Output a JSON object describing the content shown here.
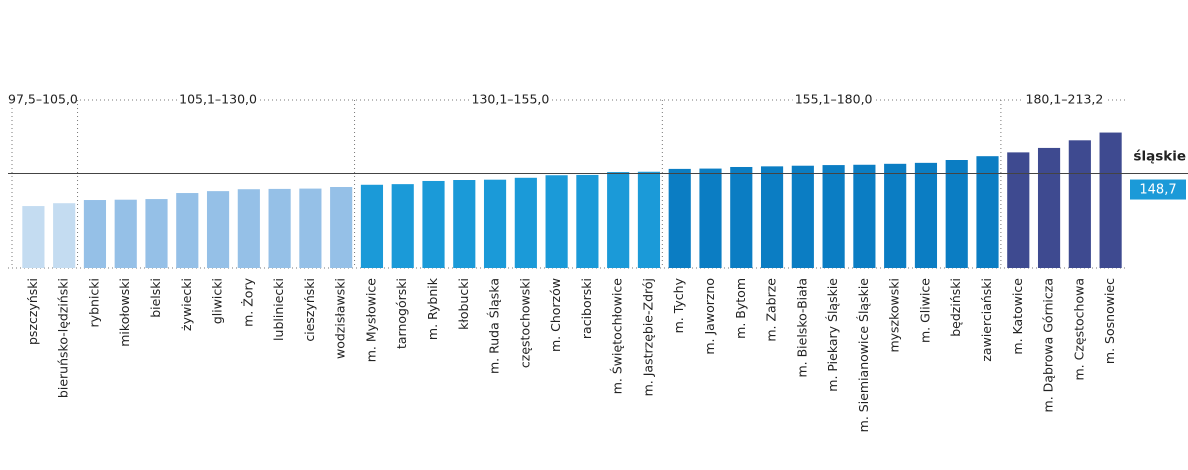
{
  "chart_data": {
    "type": "bar",
    "categories": [
      "pszczyński",
      "bieruńsko-lędziński",
      "rybnicki",
      "mikołowski",
      "bielski",
      "żywiecki",
      "gliwicki",
      "m. Żory",
      "lubliniecki",
      "cieszyński",
      "wodzisławski",
      "m. Mysłowice",
      "tarnogórski",
      "m. Rybnik",
      "kłobucki",
      "m. Ruda Śląska",
      "częstochowski",
      "m. Chorzów",
      "raciborski",
      "m. Świętochłowice",
      "m. Jastrzębie-Zdrój",
      "m. Tychy",
      "m. Jaworzno",
      "m. Bytom",
      "m. Zabrze",
      "m. Bielsko-Biała",
      "m. Piekary Śląskie",
      "m. Siemianowice Śląskie",
      "myszkowski",
      "m. Gliwice",
      "będziński",
      "zawierciański",
      "m. Katowice",
      "m. Dąbrowa Górnicza",
      "m. Częstochowa",
      "m. Sosnowiec"
    ],
    "series": [
      {
        "name": "97,5–105,0",
        "color": "#c4dcf1",
        "values": [
          97.5,
          102,
          null,
          null,
          null,
          null,
          null,
          null,
          null,
          null,
          null,
          null,
          null,
          null,
          null,
          null,
          null,
          null,
          null,
          null,
          null,
          null,
          null,
          null,
          null,
          null,
          null,
          null,
          null,
          null,
          null,
          null,
          null,
          null,
          null,
          null
        ]
      },
      {
        "name": "105,1–130,0",
        "color": "#95c0e7",
        "values": [
          null,
          null,
          107,
          107.5,
          108.5,
          118,
          121,
          124,
          124.5,
          125,
          127.5,
          null,
          null,
          null,
          null,
          null,
          null,
          null,
          null,
          null,
          null,
          null,
          null,
          null,
          null,
          null,
          null,
          null,
          null,
          null,
          null,
          null,
          null,
          null,
          null,
          null
        ]
      },
      {
        "name": "130,1–155,0",
        "color": "#1b9ad8",
        "values": [
          null,
          null,
          null,
          null,
          null,
          null,
          null,
          null,
          null,
          null,
          null,
          131,
          132,
          137,
          138.5,
          139,
          142,
          146,
          146.5,
          151,
          151.5,
          null,
          null,
          null,
          null,
          null,
          null,
          null,
          null,
          null,
          null,
          null,
          null,
          null,
          null,
          null
        ]
      },
      {
        "name": "155,1–180,0",
        "color": "#0b7dc3",
        "values": [
          null,
          null,
          null,
          null,
          null,
          null,
          null,
          null,
          null,
          null,
          null,
          null,
          null,
          null,
          null,
          null,
          null,
          null,
          null,
          null,
          null,
          156,
          156.5,
          159,
          160,
          161,
          162,
          162.5,
          164,
          165.5,
          170,
          176,
          null,
          null,
          null,
          null
        ]
      },
      {
        "name": "180,1–213,2",
        "color": "#3e4a90",
        "values": [
          null,
          null,
          null,
          null,
          null,
          null,
          null,
          null,
          null,
          null,
          null,
          null,
          null,
          null,
          null,
          null,
          null,
          null,
          null,
          null,
          null,
          null,
          null,
          null,
          null,
          null,
          null,
          null,
          null,
          null,
          null,
          null,
          182,
          189,
          201,
          213.2
        ]
      }
    ],
    "ylim": [
      0,
      340
    ],
    "reference": {
      "label": "śląskie",
      "value": 148.7,
      "value_label": "148,7",
      "color": "#1b9ad8"
    }
  }
}
